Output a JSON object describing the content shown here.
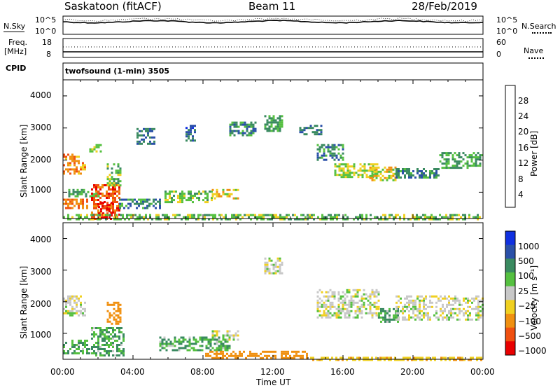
{
  "header": {
    "station": "Saskatoon (fitACF)",
    "beam": "Beam 11",
    "date": "28/Feb/2019"
  },
  "noise_panel": {
    "left_label": "N.Sky",
    "left_ticks": [
      "10^5",
      "10^0"
    ],
    "right_ticks": [
      "10^5",
      "10^0"
    ],
    "right_label": "N.Search"
  },
  "freq_panel": {
    "left_label_1": "Freq.",
    "left_label_2": "[MHz]",
    "left_ticks": [
      "18",
      "8"
    ],
    "right_ticks": [
      "60",
      "0"
    ],
    "right_label": "Nave",
    "cpid_label": "CPID",
    "cpid_value": "twofsound (1-min) 3505"
  },
  "x_ticks": [
    "00:00",
    "04:00",
    "08:00",
    "12:00",
    "16:00",
    "20:00",
    "00:00"
  ],
  "x_label": "Time UT",
  "y_label": "Slant Range [km]",
  "y_ticks": [
    "1000",
    "2000",
    "3000",
    "4000"
  ],
  "power_colorbar": {
    "label": "Power [dB]",
    "ticks": [
      "4",
      "8",
      "12",
      "16",
      "20",
      "24",
      "28"
    ],
    "colors": [
      "#1030e0",
      "#2a50a8",
      "#3a8a60",
      "#55c040",
      "#f0d020",
      "#f09010",
      "#f05010",
      "#e80000"
    ]
  },
  "velocity_colorbar": {
    "label": "Velocity [m s⁻¹]",
    "ticks": [
      "1000",
      "500",
      "100",
      "25",
      "−25",
      "−100",
      "−500",
      "−1000"
    ],
    "colors": [
      "#1030e0",
      "#2a50a8",
      "#3a8a60",
      "#55c040",
      "#c8c8c8",
      "#f0d020",
      "#f09010",
      "#f05010",
      "#e80000"
    ]
  },
  "chart_data": [
    {
      "type": "heatmap",
      "title": "Power [dB]",
      "x_range_hours": [
        0,
        24
      ],
      "y_range_km": [
        180,
        4500
      ],
      "color_range_db": [
        0,
        30
      ],
      "bands": [
        {
          "t0": 0.0,
          "t1": 1.3,
          "r0": 1550,
          "r1": 2200,
          "value": 22
        },
        {
          "t0": 0.0,
          "t1": 1.5,
          "r0": 500,
          "r1": 800,
          "value": 24
        },
        {
          "t0": 0.3,
          "t1": 2.0,
          "r0": 850,
          "r1": 1100,
          "value": 12
        },
        {
          "t0": 1.5,
          "t1": 2.2,
          "r0": 2250,
          "r1": 2500,
          "value": 14
        },
        {
          "t0": 1.6,
          "t1": 3.2,
          "r0": 200,
          "r1": 1250,
          "value": 26
        },
        {
          "t0": 2.0,
          "t1": 2.8,
          "r0": 200,
          "r1": 700,
          "value": 30
        },
        {
          "t0": 2.5,
          "t1": 3.3,
          "r0": 1200,
          "r1": 1900,
          "value": 14
        },
        {
          "t0": 3.2,
          "t1": 5.5,
          "r0": 500,
          "r1": 800,
          "value": 10
        },
        {
          "t0": 5.8,
          "t1": 8.5,
          "r0": 700,
          "r1": 1050,
          "value": 14
        },
        {
          "t0": 8.5,
          "t1": 10.0,
          "r0": 800,
          "r1": 1100,
          "value": 18
        },
        {
          "t0": 4.2,
          "t1": 5.2,
          "r0": 2500,
          "r1": 3000,
          "value": 8
        },
        {
          "t0": 7.0,
          "t1": 7.5,
          "r0": 2600,
          "r1": 3100,
          "value": 6
        },
        {
          "t0": 9.5,
          "t1": 11.0,
          "r0": 2800,
          "r1": 3200,
          "value": 10
        },
        {
          "t0": 11.5,
          "t1": 12.5,
          "r0": 2900,
          "r1": 3400,
          "value": 12
        },
        {
          "t0": 13.5,
          "t1": 14.8,
          "r0": 2800,
          "r1": 3100,
          "value": 8
        },
        {
          "t0": 14.5,
          "t1": 16.0,
          "r0": 2000,
          "r1": 2500,
          "value": 10
        },
        {
          "t0": 15.5,
          "t1": 18.0,
          "r0": 1500,
          "r1": 1900,
          "value": 16
        },
        {
          "t0": 17.5,
          "t1": 19.0,
          "r0": 1350,
          "r1": 1800,
          "value": 18
        },
        {
          "t0": 19.0,
          "t1": 21.5,
          "r0": 1450,
          "r1": 1750,
          "value": 10
        },
        {
          "t0": 21.5,
          "t1": 24.0,
          "r0": 1750,
          "r1": 2250,
          "value": 12
        },
        {
          "t0": 0.0,
          "t1": 24.0,
          "r0": 180,
          "r1": 320,
          "value": 14
        }
      ]
    },
    {
      "type": "heatmap",
      "title": "Velocity [m s⁻¹]",
      "x_range_hours": [
        0,
        24
      ],
      "y_range_km": [
        180,
        4500
      ],
      "bands": [
        {
          "t0": 0.0,
          "t1": 1.3,
          "r0": 1550,
          "r1": 2200,
          "value": 0
        },
        {
          "t0": 0.0,
          "t1": 1.5,
          "r0": 350,
          "r1": 800,
          "value": 60
        },
        {
          "t0": 1.6,
          "t1": 3.5,
          "r0": 300,
          "r1": 1200,
          "value": 60
        },
        {
          "t0": 2.5,
          "t1": 3.3,
          "r0": 1300,
          "r1": 2000,
          "value": -150
        },
        {
          "t0": 5.5,
          "t1": 9.5,
          "r0": 500,
          "r1": 900,
          "value": 60
        },
        {
          "t0": 8.5,
          "t1": 10.0,
          "r0": 800,
          "r1": 1100,
          "value": 0
        },
        {
          "t0": 11.5,
          "t1": 12.5,
          "r0": 2900,
          "r1": 3400,
          "value": 0
        },
        {
          "t0": 14.5,
          "t1": 18.0,
          "r0": 1500,
          "r1": 2400,
          "value": 0
        },
        {
          "t0": 18.0,
          "t1": 19.2,
          "r0": 1350,
          "r1": 1800,
          "value": 60
        },
        {
          "t0": 19.0,
          "t1": 24.0,
          "r0": 1450,
          "r1": 2200,
          "value": 0
        },
        {
          "t0": 8.0,
          "t1": 14.0,
          "r0": 200,
          "r1": 450,
          "value": -200
        },
        {
          "t0": 14.0,
          "t1": 24.0,
          "r0": 180,
          "r1": 260,
          "value": -80
        }
      ]
    }
  ]
}
